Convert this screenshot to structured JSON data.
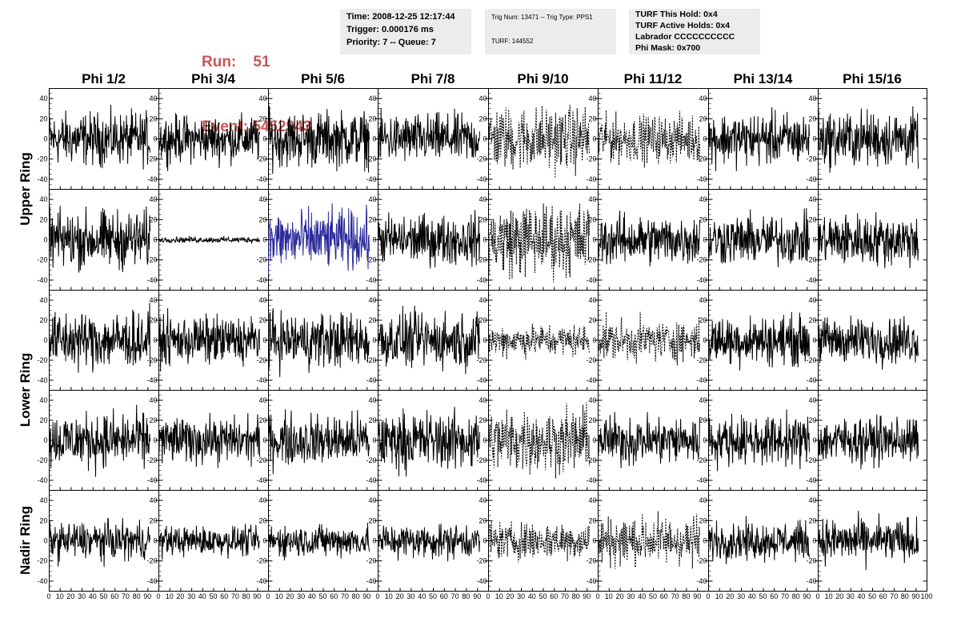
{
  "header": {
    "run_label": "Run:",
    "run_value": "51",
    "event_label": "Event:",
    "event_value": "5452943",
    "box1": [
      "Time: 2008-12-25 12:17:44",
      "Trigger: 0.000176 ms",
      "Priority: 7 -- Queue: 7"
    ],
    "box2": [
      "Trig Num: 13471 -- Trig Type: PPS1",
      "TURF: 144552"
    ],
    "box3": [
      "TURF This Hold: 0x4",
      "TURF Active Holds: 0x4",
      "Labrador CCCCCCCCCC",
      "Phi Mask: 0x700"
    ]
  },
  "colors": {
    "accent": "#cc5555",
    "panel_bg": "#ececec",
    "trace": "#000000",
    "highlight_trace": "#2a2a9a"
  },
  "chart_data": {
    "type": "line",
    "columns": [
      "Phi 1/2",
      "Phi 3/4",
      "Phi 5/6",
      "Phi 7/8",
      "Phi 9/10",
      "Phi 11/12",
      "Phi 13/14",
      "Phi 15/16"
    ],
    "row_groups": [
      {
        "label": "Upper Ring",
        "rows": [
          0,
          1
        ]
      },
      {
        "label": "Lower Ring",
        "rows": [
          2,
          3
        ]
      },
      {
        "label": "Nadir Ring",
        "rows": [
          4
        ]
      }
    ],
    "xlim": [
      0,
      100
    ],
    "ylim": [
      -50,
      50
    ],
    "y_ticks": [
      -40,
      -20,
      0,
      20,
      40
    ],
    "y_tick_labels": [
      "-40",
      "-20",
      "0",
      "20",
      "40"
    ],
    "x_ticks": [
      0,
      10,
      20,
      30,
      40,
      50,
      60,
      70,
      80,
      90,
      100
    ],
    "x_tick_labels": [
      "0",
      "10",
      "20",
      "30",
      "40",
      "50",
      "60",
      "70",
      "80",
      "90",
      "100"
    ],
    "samples_per_trace": 240,
    "x_end": 92,
    "panels": [
      [
        {
          "amp": 18,
          "style": "solid",
          "color": "#000000"
        },
        {
          "amp": 16,
          "style": "solid",
          "color": "#000000"
        },
        {
          "amp": 19,
          "style": "solid",
          "color": "#000000"
        },
        {
          "amp": 17,
          "style": "solid",
          "color": "#000000"
        },
        {
          "amp": 22,
          "style": "dashed",
          "color": "#000000"
        },
        {
          "amp": 16,
          "style": "dashed",
          "color": "#000000"
        },
        {
          "amp": 18,
          "style": "solid",
          "color": "#000000"
        },
        {
          "amp": 19,
          "style": "solid",
          "color": "#000000"
        }
      ],
      [
        {
          "amp": 20,
          "style": "solid",
          "color": "#000000"
        },
        {
          "amp": 2,
          "style": "solid",
          "color": "#000000"
        },
        {
          "amp": 20,
          "style": "solid",
          "color": "#2a2a9a"
        },
        {
          "amp": 17,
          "style": "solid",
          "color": "#000000"
        },
        {
          "amp": 25,
          "style": "dashed",
          "color": "#000000"
        },
        {
          "amp": 17,
          "style": "solid",
          "color": "#000000"
        },
        {
          "amp": 17,
          "style": "solid",
          "color": "#000000"
        },
        {
          "amp": 18,
          "style": "solid",
          "color": "#000000"
        }
      ],
      [
        {
          "amp": 20,
          "style": "solid",
          "color": "#000000"
        },
        {
          "amp": 17,
          "style": "solid",
          "color": "#000000"
        },
        {
          "amp": 19,
          "style": "solid",
          "color": "#000000"
        },
        {
          "amp": 19,
          "style": "solid",
          "color": "#000000"
        },
        {
          "amp": 11,
          "style": "dashed",
          "color": "#000000"
        },
        {
          "amp": 14,
          "style": "dashed",
          "color": "#000000"
        },
        {
          "amp": 17,
          "style": "solid",
          "color": "#000000"
        },
        {
          "amp": 16,
          "style": "solid",
          "color": "#000000"
        }
      ],
      [
        {
          "amp": 19,
          "style": "solid",
          "color": "#000000"
        },
        {
          "amp": 16,
          "style": "solid",
          "color": "#000000"
        },
        {
          "amp": 18,
          "style": "solid",
          "color": "#000000"
        },
        {
          "amp": 20,
          "style": "solid",
          "color": "#000000"
        },
        {
          "amp": 22,
          "style": "dashed",
          "color": "#000000"
        },
        {
          "amp": 17,
          "style": "solid",
          "color": "#000000"
        },
        {
          "amp": 17,
          "style": "solid",
          "color": "#000000"
        },
        {
          "amp": 16,
          "style": "solid",
          "color": "#000000"
        }
      ],
      [
        {
          "amp": 13,
          "style": "solid",
          "color": "#000000"
        },
        {
          "amp": 10,
          "style": "solid",
          "color": "#000000"
        },
        {
          "amp": 11,
          "style": "solid",
          "color": "#000000"
        },
        {
          "amp": 12,
          "style": "solid",
          "color": "#000000"
        },
        {
          "amp": 13,
          "style": "dashed",
          "color": "#000000"
        },
        {
          "amp": 17,
          "style": "dashed",
          "color": "#000000"
        },
        {
          "amp": 13,
          "style": "solid",
          "color": "#000000"
        },
        {
          "amp": 15,
          "style": "solid",
          "color": "#000000"
        }
      ]
    ]
  }
}
